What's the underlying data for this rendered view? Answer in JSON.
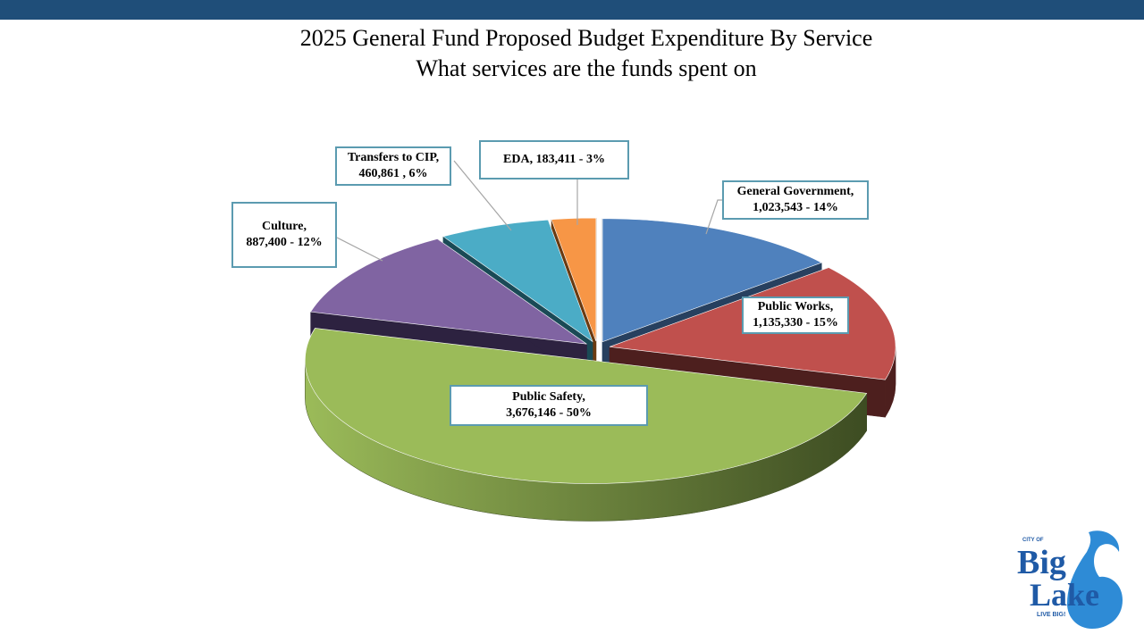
{
  "title_line1": "2025 General Fund Proposed Budget Expenditure By Service",
  "title_line2": "What services are the funds spent on",
  "chart_data": {
    "type": "pie",
    "title": "2025 General Fund Proposed Budget Expenditure By Service",
    "subtitle": "What services are the funds spent on",
    "style": "3d-exploded",
    "slices": [
      {
        "label": "General Government",
        "value": 1023543,
        "percent": 14,
        "color": "#4f81bd",
        "dark": "#27405f",
        "label_line1": "General Government,",
        "label_line2": "1,023,543 - 14%"
      },
      {
        "label": "Public Works",
        "value": 1135330,
        "percent": 15,
        "color": "#c0504d",
        "dark": "#4d1f1e",
        "label_line1": "Public Works,",
        "label_line2": "1,135,330 - 15%"
      },
      {
        "label": "Public Safety",
        "value": 3676146,
        "percent": 50,
        "color": "#9bbb59",
        "dark": "#3d4c22",
        "label_line1": "Public Safety,",
        "label_line2": "3,676,146 - 50%"
      },
      {
        "label": "Culture",
        "value": 887400,
        "percent": 12,
        "color": "#8064a2",
        "dark": "#2d2240",
        "label_line1": "Culture,",
        "label_line2": "887,400 - 12%"
      },
      {
        "label": "Transfers to CIP",
        "value": 460861,
        "percent": 6,
        "color": "#4bacc6",
        "dark": "#1a4a56",
        "label_line1": "Transfers to CIP,",
        "label_line2": "460,861 , 6%"
      },
      {
        "label": "EDA",
        "value": 183411,
        "percent": 3,
        "color": "#f79646",
        "dark": "#6b3a10",
        "label_line1": "EDA,  183,411 - 3%",
        "label_line2": ""
      }
    ]
  },
  "logo": {
    "small_text": "CITY OF",
    "line1": "Big",
    "line2": "Lake",
    "tagline": "LIVE BIG!",
    "color": "#1f5aa6",
    "accent": "#2e8bd6"
  }
}
